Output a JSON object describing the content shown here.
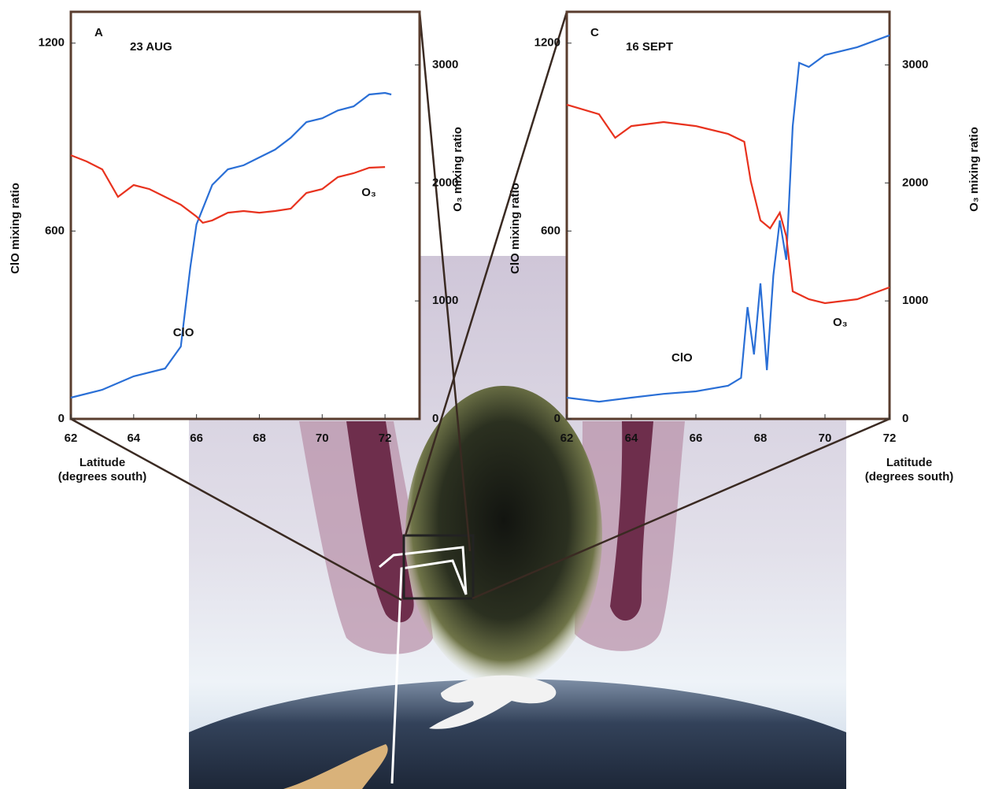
{
  "chart_data": [
    {
      "type": "line",
      "label": "A",
      "title": "23 AUG",
      "xlabel": [
        "Latitude",
        "(degrees south)"
      ],
      "ylabel": "ClO mixing ratio",
      "y2label": "O₃ mixing ratio",
      "xlim": [
        62,
        73.1
      ],
      "xticks": [
        62,
        64,
        66,
        68,
        70,
        72
      ],
      "ylim": [
        0,
        1300
      ],
      "yticks": [
        0,
        600,
        1200
      ],
      "y2lim": [
        0,
        3450
      ],
      "y2ticks": [
        0,
        1000,
        2000,
        3000
      ],
      "series": [
        {
          "name": "ClO",
          "color": "#2a6fd6",
          "x": [
            62,
            63,
            64,
            65,
            65.5,
            65.8,
            66,
            66.5,
            67,
            67.5,
            68,
            68.5,
            69,
            69.5,
            70,
            70.5,
            71,
            71.5,
            72,
            72.2
          ],
          "values": [
            68,
            93,
            136,
            161,
            231,
            483,
            621,
            747,
            797,
            810,
            835,
            860,
            898,
            948,
            960,
            985,
            998,
            1036,
            1041,
            1036
          ]
        },
        {
          "name": "O₃",
          "color": "#e8321e",
          "axis": "y2",
          "x": [
            62,
            62.5,
            63,
            63.5,
            64,
            64.5,
            65,
            65.5,
            66,
            66.2,
            66.5,
            67,
            67.5,
            68,
            68.5,
            69,
            69.5,
            70,
            70.5,
            71,
            71.5,
            72
          ],
          "values": [
            2235,
            2182,
            2115,
            1882,
            1982,
            1948,
            1882,
            1815,
            1715,
            1662,
            1682,
            1748,
            1762,
            1748,
            1762,
            1782,
            1915,
            1948,
            2049,
            2082,
            2129,
            2135
          ]
        }
      ]
    },
    {
      "type": "line",
      "label": "C",
      "title": "16 SEPT",
      "xlabel": [
        "Latitude",
        "(degrees south)"
      ],
      "ylabel": "ClO mixing ratio",
      "y2label": "O₃ mixing ratio",
      "xlim": [
        62,
        72
      ],
      "xticks": [
        62,
        64,
        66,
        68,
        70,
        72
      ],
      "ylim": [
        0,
        1300
      ],
      "yticks": [
        0,
        600,
        1200
      ],
      "y2lim": [
        0,
        3450
      ],
      "y2ticks": [
        0,
        1000,
        2000,
        3000
      ],
      "series": [
        {
          "name": "ClO",
          "color": "#2a6fd6",
          "x": [
            62,
            63,
            64,
            65,
            66,
            67,
            67.4,
            67.6,
            67.8,
            68,
            68.2,
            68.4,
            68.6,
            68.8,
            69,
            69.2,
            69.5,
            70,
            71,
            72
          ],
          "values": [
            68,
            55,
            68,
            80,
            88,
            106,
            131,
            357,
            206,
            433,
            156,
            458,
            634,
            508,
            935,
            1137,
            1124,
            1162,
            1187,
            1225
          ]
        },
        {
          "name": "O₃",
          "color": "#e8321e",
          "axis": "y2",
          "x": [
            62,
            63,
            63.5,
            64,
            65,
            66,
            67,
            67.5,
            67.7,
            68,
            68.3,
            68.6,
            68.8,
            69,
            69.5,
            70,
            71,
            72
          ],
          "values": [
            2663,
            2582,
            2382,
            2482,
            2516,
            2482,
            2415,
            2349,
            2015,
            1682,
            1615,
            1748,
            1548,
            1081,
            1014,
            981,
            1014,
            1115
          ]
        }
      ]
    }
  ]
}
